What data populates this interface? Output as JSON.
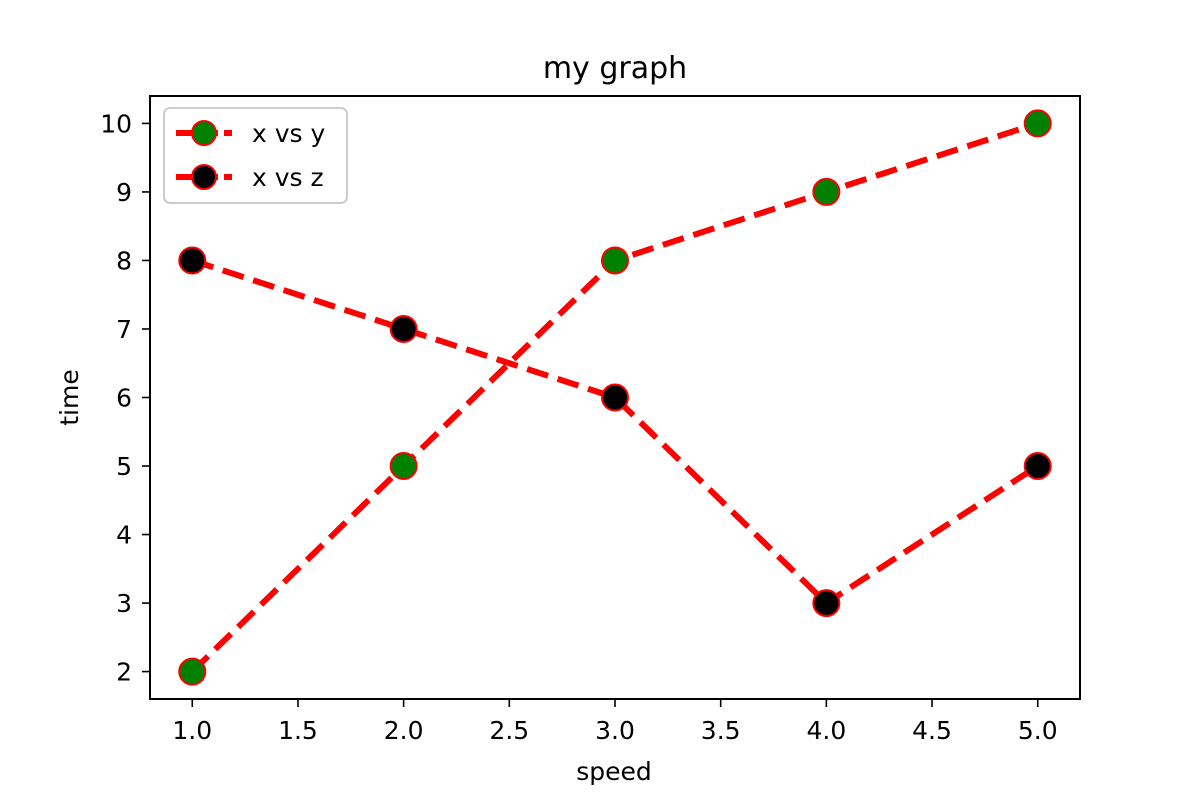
{
  "chart_data": {
    "type": "line",
    "title": "my graph",
    "xlabel": "speed",
    "ylabel": "time",
    "xlim": [
      0.8,
      5.2
    ],
    "ylim": [
      1.6,
      10.4
    ],
    "x_ticks": [
      "1.0",
      "1.5",
      "2.0",
      "2.5",
      "3.0",
      "3.5",
      "4.0",
      "4.5",
      "5.0"
    ],
    "y_ticks": [
      "2",
      "3",
      "4",
      "5",
      "6",
      "7",
      "8",
      "9",
      "10"
    ],
    "x": [
      1,
      2,
      3,
      4,
      5
    ],
    "series": [
      {
        "name": "x vs y",
        "values": [
          2,
          5,
          8,
          9,
          10
        ],
        "line_color": "#ff0000",
        "marker_face": "#008000",
        "marker_edge": "#ff0000",
        "line_style": "dashed"
      },
      {
        "name": "x vs z",
        "values": [
          8,
          7,
          6,
          3,
          5
        ],
        "line_color": "#ff0000",
        "marker_face": "#000000",
        "marker_edge": "#ff0000",
        "line_style": "dashed"
      }
    ],
    "legend_position": "top-left",
    "grid": false
  }
}
